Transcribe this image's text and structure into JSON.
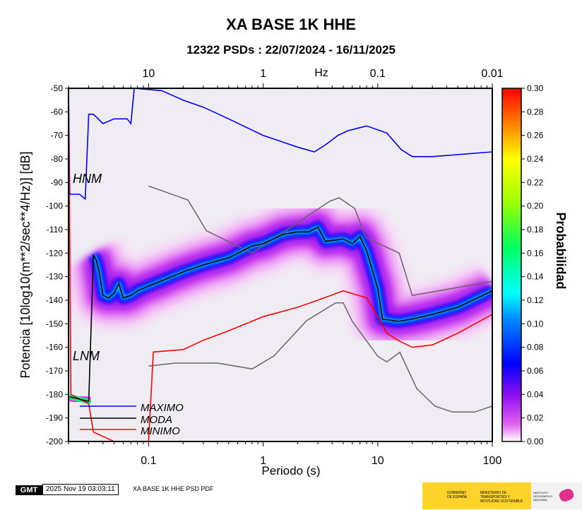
{
  "chart_data": {
    "type": "heatmap",
    "title": "XA BASE 1K HHE",
    "subtitle": "12322 PSDs : 22/07/2024 - 16/11/2025",
    "xlabel": "Periodo (s)",
    "ylabel": "Potencia [10log10(m**2/sec**4/Hz)] [dB]",
    "top_axis_label": "Hz",
    "x_scale": "log",
    "xlim": [
      0.02,
      100
    ],
    "ylim": [
      -200,
      -50
    ],
    "x_ticks": [
      "0.1",
      "1",
      "10",
      "100"
    ],
    "top_ticks": [
      "10",
      "1",
      "0.1",
      "0.01"
    ],
    "y_ticks": [
      "-50",
      "-60",
      "-70",
      "-80",
      "-90",
      "-100",
      "-110",
      "-120",
      "-130",
      "-140",
      "-150",
      "-160",
      "-170",
      "-180",
      "-190",
      "-200"
    ],
    "colorbar": {
      "label": "Probabilidad",
      "range": [
        0,
        0.3
      ],
      "ticks": [
        "0.30",
        "0.28",
        "0.26",
        "0.24",
        "0.22",
        "0.20",
        "0.18",
        "0.16",
        "0.14",
        "0.12",
        "0.10",
        "0.08",
        "0.06",
        "0.04",
        "0.02",
        "0.00"
      ]
    },
    "model_labels": [
      "HNM",
      "LNM"
    ],
    "legend": {
      "placement": "bottom-left",
      "entries": [
        "MAXIMO",
        "MODA",
        "MINIMO"
      ]
    },
    "series": [
      {
        "name": "MAXIMO",
        "color": "#0000ff",
        "points": [
          [
            0.02,
            -50
          ],
          [
            0.0205,
            -95
          ],
          [
            0.025,
            -95
          ],
          [
            0.028,
            -97
          ],
          [
            0.03,
            -61
          ],
          [
            0.033,
            -61
          ],
          [
            0.04,
            -65
          ],
          [
            0.05,
            -63
          ],
          [
            0.065,
            -63
          ],
          [
            0.07,
            -65
          ],
          [
            0.075,
            -50
          ],
          [
            0.13,
            -51
          ],
          [
            0.2,
            -55
          ],
          [
            0.3,
            -58
          ],
          [
            0.5,
            -63
          ],
          [
            1,
            -70
          ],
          [
            2,
            -75
          ],
          [
            2.8,
            -77
          ],
          [
            3.5,
            -74
          ],
          [
            4.5,
            -70
          ],
          [
            5.5,
            -68
          ],
          [
            8,
            -66
          ],
          [
            12,
            -69
          ],
          [
            16,
            -76
          ],
          [
            20,
            -79
          ],
          [
            30,
            -79
          ],
          [
            100,
            -77
          ]
        ]
      },
      {
        "name": "MODA",
        "color": "#000000",
        "points": [
          [
            0.0205,
            -181
          ],
          [
            0.03,
            -183
          ],
          [
            0.033,
            -121
          ],
          [
            0.035,
            -123
          ],
          [
            0.037,
            -128
          ],
          [
            0.04,
            -138
          ],
          [
            0.045,
            -139
          ],
          [
            0.05,
            -137
          ],
          [
            0.055,
            -133
          ],
          [
            0.06,
            -139
          ],
          [
            0.07,
            -138
          ],
          [
            0.08,
            -136
          ],
          [
            0.1,
            -134
          ],
          [
            0.2,
            -128
          ],
          [
            0.3,
            -125
          ],
          [
            0.5,
            -122
          ],
          [
            0.8,
            -117
          ],
          [
            1,
            -116
          ],
          [
            1.5,
            -112
          ],
          [
            2,
            -111
          ],
          [
            2.5,
            -111
          ],
          [
            3,
            -109
          ],
          [
            3.5,
            -115
          ],
          [
            5,
            -114
          ],
          [
            6,
            -116
          ],
          [
            7,
            -113
          ],
          [
            8,
            -119
          ],
          [
            10,
            -135
          ],
          [
            11,
            -148
          ],
          [
            15,
            -149
          ],
          [
            20,
            -148
          ],
          [
            30,
            -146
          ],
          [
            50,
            -143
          ],
          [
            100,
            -136
          ]
        ]
      },
      {
        "name": "MINIMO",
        "color": "#ff0000",
        "points": [
          [
            0.02,
            -50
          ],
          [
            0.021,
            -180
          ],
          [
            0.03,
            -184
          ],
          [
            0.033,
            -196
          ],
          [
            0.05,
            -200
          ],
          [
            0.1,
            -200
          ],
          [
            0.11,
            -162
          ],
          [
            0.2,
            -161
          ],
          [
            0.3,
            -157
          ],
          [
            0.5,
            -153
          ],
          [
            1,
            -147
          ],
          [
            2,
            -143
          ],
          [
            3,
            -140
          ],
          [
            5,
            -136
          ],
          [
            8,
            -139
          ],
          [
            10,
            -147
          ],
          [
            12,
            -154
          ],
          [
            15,
            -157
          ],
          [
            20,
            -160
          ],
          [
            30,
            -159
          ],
          [
            50,
            -154
          ],
          [
            100,
            -146
          ]
        ]
      },
      {
        "name": "HNM",
        "color": "#666666",
        "points": [
          [
            0.1,
            -91.5
          ],
          [
            0.22,
            -97.4
          ],
          [
            0.32,
            -110.5
          ],
          [
            0.8,
            -120
          ],
          [
            3.8,
            -98
          ],
          [
            4.6,
            -96.5
          ],
          [
            6.3,
            -101
          ],
          [
            7.9,
            -113.5
          ],
          [
            15.4,
            -120
          ],
          [
            20,
            -138
          ],
          [
            100,
            -132
          ]
        ]
      },
      {
        "name": "LNM",
        "color": "#666666",
        "points": [
          [
            0.1,
            -168
          ],
          [
            0.17,
            -166.7
          ],
          [
            0.4,
            -166.7
          ],
          [
            0.8,
            -169.2
          ],
          [
            1.24,
            -163.7
          ],
          [
            2.4,
            -148.6
          ],
          [
            4.3,
            -141.1
          ],
          [
            5,
            -141.1
          ],
          [
            6,
            -149
          ],
          [
            10,
            -163.8
          ],
          [
            12,
            -166.2
          ],
          [
            15.6,
            -162.1
          ],
          [
            21.9,
            -177.5
          ],
          [
            31.6,
            -185
          ],
          [
            45,
            -187.5
          ],
          [
            70,
            -187.5
          ],
          [
            100,
            -185
          ]
        ]
      }
    ]
  },
  "footer": {
    "logo": "GMT",
    "timestamp": "2025 Nov 19 03:03:11",
    "caption": "XA BASE 1K HHE PSD PDF",
    "logo1_a": "GOBIERNO DE ESPAÑA",
    "logo1_b": "MINISTERIO DE TRANSPORTES Y MOVILIDAD SOSTENIBLE",
    "logo2": "INSTITUTO GEOGRÁFICO NACIONAL"
  }
}
